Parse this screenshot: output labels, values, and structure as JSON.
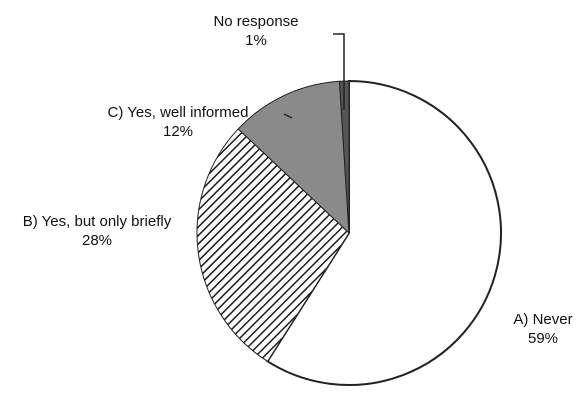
{
  "chart_data": {
    "type": "pie",
    "slices": [
      {
        "label": "A) Never",
        "value": 59,
        "value_label": "59%",
        "fill": "white",
        "color": "#ffffff"
      },
      {
        "label": "B) Yes, but only briefly",
        "value": 28,
        "value_label": "28%",
        "fill": "diagonal-hatch",
        "color": "#222222"
      },
      {
        "label": "C) Yes, well informed",
        "value": 12,
        "value_label": "12%",
        "fill": "solid",
        "color": "#8a8a8a"
      },
      {
        "label": "No response",
        "value": 1,
        "value_label": "1%",
        "fill": "solid",
        "color": "#555555"
      }
    ],
    "legend": "none",
    "start_angle_deg": 0,
    "direction": "clockwise"
  }
}
